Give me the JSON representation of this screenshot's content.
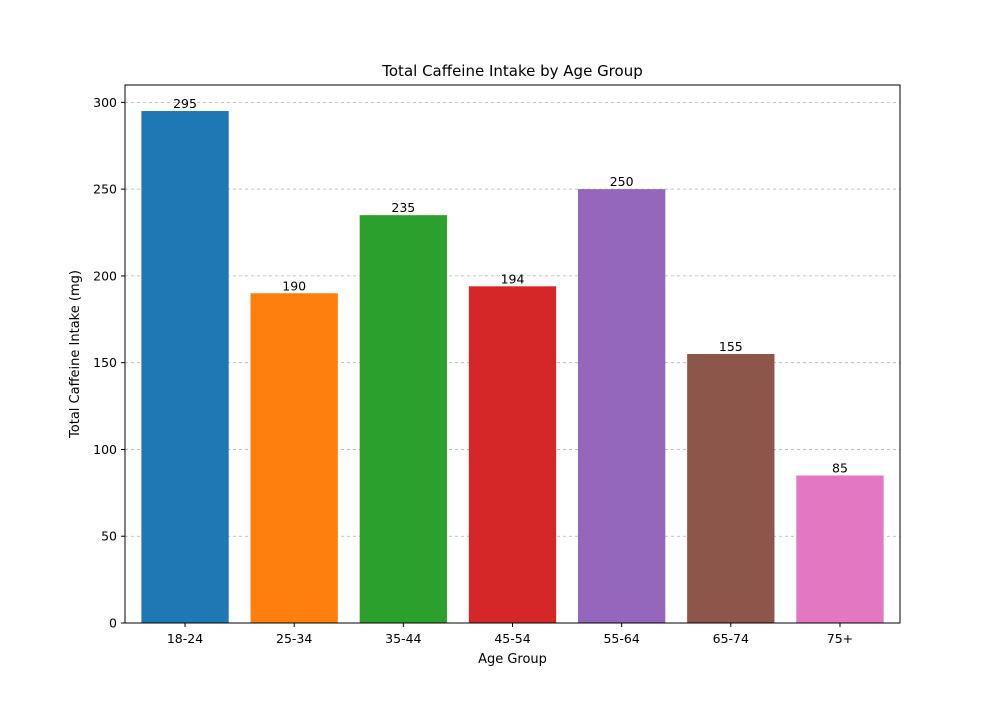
{
  "chart_data": {
    "type": "bar",
    "title": "Total Caffeine Intake by Age Group",
    "xlabel": "Age Group",
    "ylabel": "Total Caffeine Intake (mg)",
    "categories": [
      "18-24",
      "25-34",
      "35-44",
      "45-54",
      "55-64",
      "65-74",
      "75+"
    ],
    "values": [
      295,
      190,
      235,
      194,
      250,
      155,
      85
    ],
    "colors": [
      "#1f77b4",
      "#ff7f0e",
      "#2ca02c",
      "#d62728",
      "#9467bd",
      "#8c564b",
      "#e377c2"
    ],
    "ylim": [
      0,
      310
    ],
    "yticks": [
      0,
      50,
      100,
      150,
      200,
      250,
      300
    ],
    "grid": "y",
    "show_value_labels": true
  }
}
